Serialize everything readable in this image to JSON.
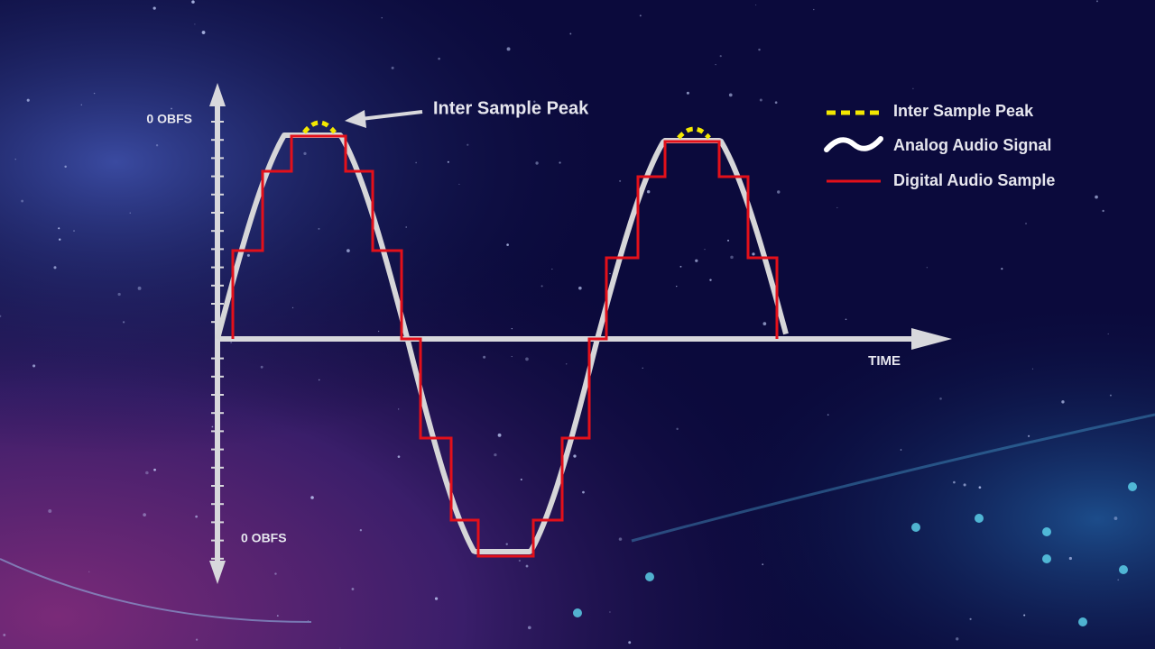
{
  "axis": {
    "top_label": "0 OBFS",
    "bottom_label": "0 OBFS",
    "x_label": "TIME"
  },
  "annotation": "Inter Sample Peak",
  "legend": [
    {
      "label": "Inter Sample Peak"
    },
    {
      "label": "Analog Audio Signal"
    },
    {
      "label": "Digital Audio Sample"
    }
  ]
}
